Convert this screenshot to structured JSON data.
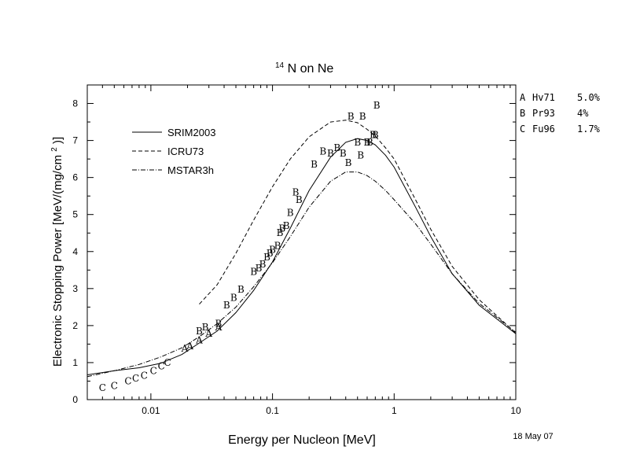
{
  "chart_data": {
    "type": "line",
    "title_superscript": "14",
    "title_main": "N on Ne",
    "xlabel": "Energy per Nucleon [MeV]",
    "ylabel_main": "Electronic Stopping Power [MeV/(mg/cm",
    "ylabel_sup": "2",
    "ylabel_end": ")]",
    "xscale": "log",
    "xlim": [
      0.003,
      10
    ],
    "ylim": [
      0,
      8.5
    ],
    "x_ticks": [
      {
        "value": 0.01,
        "label": "0.01"
      },
      {
        "value": 0.1,
        "label": "0.1"
      },
      {
        "value": 1,
        "label": "1"
      },
      {
        "value": 10,
        "label": "10"
      }
    ],
    "y_ticks": [
      {
        "value": 0,
        "label": "0"
      },
      {
        "value": 1,
        "label": "1"
      },
      {
        "value": 2,
        "label": "2"
      },
      {
        "value": 3,
        "label": "3"
      },
      {
        "value": 4,
        "label": "4"
      },
      {
        "value": 5,
        "label": "5"
      },
      {
        "value": 6,
        "label": "6"
      },
      {
        "value": 7,
        "label": "7"
      },
      {
        "value": 8,
        "label": "8"
      }
    ],
    "legend_position": "top-left",
    "series": [
      {
        "name": "SRIM2003",
        "dash": "solid",
        "x": [
          0.003,
          0.005,
          0.008,
          0.012,
          0.018,
          0.025,
          0.035,
          0.05,
          0.07,
          0.1,
          0.14,
          0.2,
          0.3,
          0.4,
          0.5,
          0.6,
          0.7,
          0.85,
          1.0,
          1.5,
          2.0,
          3.0,
          5.0,
          10.0
        ],
        "y": [
          0.67,
          0.78,
          0.86,
          0.98,
          1.22,
          1.53,
          1.85,
          2.35,
          2.95,
          3.72,
          4.63,
          5.65,
          6.55,
          6.95,
          7.05,
          7.0,
          6.88,
          6.6,
          6.28,
          5.2,
          4.4,
          3.4,
          2.55,
          1.78
        ]
      },
      {
        "name": "ICRU73",
        "dash": "dashed",
        "x": [
          0.025,
          0.035,
          0.05,
          0.07,
          0.1,
          0.14,
          0.2,
          0.3,
          0.4,
          0.5,
          0.6,
          0.7,
          0.85,
          1.0,
          1.5,
          2.0,
          3.0,
          5.0,
          10.0
        ],
        "y": [
          2.58,
          3.1,
          3.95,
          4.85,
          5.75,
          6.5,
          7.1,
          7.5,
          7.55,
          7.48,
          7.3,
          7.12,
          6.8,
          6.5,
          5.4,
          4.6,
          3.6,
          2.7,
          1.8
        ]
      },
      {
        "name": "MSTAR3h",
        "dash": "dashdot",
        "x": [
          0.003,
          0.005,
          0.008,
          0.012,
          0.018,
          0.025,
          0.035,
          0.05,
          0.07,
          0.1,
          0.14,
          0.2,
          0.3,
          0.4,
          0.5,
          0.6,
          0.7,
          0.85,
          1.0,
          1.5,
          2.0,
          3.0,
          5.0,
          10.0
        ],
        "y": [
          0.62,
          0.78,
          0.95,
          1.15,
          1.4,
          1.7,
          2.05,
          2.5,
          3.05,
          3.7,
          4.4,
          5.2,
          5.9,
          6.15,
          6.15,
          6.05,
          5.9,
          5.65,
          5.4,
          4.75,
          4.2,
          3.4,
          2.6,
          1.82
        ]
      }
    ],
    "data_groups": [
      {
        "label": "A",
        "ref": "Hv71",
        "uncertainty": "5.0%",
        "points": [
          [
            0.019,
            1.38
          ],
          [
            0.021,
            1.45
          ],
          [
            0.025,
            1.6
          ],
          [
            0.03,
            1.78
          ],
          [
            0.036,
            1.95
          ]
        ]
      },
      {
        "label": "B",
        "ref": "Pr93",
        "uncertainty": "4%",
        "points": [
          [
            0.025,
            1.85
          ],
          [
            0.028,
            1.95
          ],
          [
            0.036,
            2.05
          ],
          [
            0.042,
            2.55
          ],
          [
            0.048,
            2.75
          ],
          [
            0.055,
            2.98
          ],
          [
            0.07,
            3.45
          ],
          [
            0.077,
            3.55
          ],
          [
            0.083,
            3.65
          ],
          [
            0.09,
            3.85
          ],
          [
            0.095,
            3.95
          ],
          [
            0.1,
            4.05
          ],
          [
            0.11,
            4.15
          ],
          [
            0.115,
            4.5
          ],
          [
            0.12,
            4.62
          ],
          [
            0.13,
            4.7
          ],
          [
            0.14,
            5.05
          ],
          [
            0.155,
            5.6
          ],
          [
            0.165,
            5.4
          ],
          [
            0.22,
            6.35
          ],
          [
            0.26,
            6.7
          ],
          [
            0.3,
            6.65
          ],
          [
            0.34,
            6.8
          ],
          [
            0.38,
            6.65
          ],
          [
            0.42,
            6.4
          ],
          [
            0.44,
            7.65
          ],
          [
            0.5,
            6.95
          ],
          [
            0.53,
            6.6
          ],
          [
            0.55,
            7.65
          ],
          [
            0.6,
            6.95
          ],
          [
            0.63,
            6.95
          ],
          [
            0.67,
            7.15
          ],
          [
            0.7,
            7.15
          ],
          [
            0.72,
            7.95
          ]
        ]
      },
      {
        "label": "C",
        "ref": "Fu96",
        "uncertainty": "1.7%",
        "points": [
          [
            0.004,
            0.32
          ],
          [
            0.005,
            0.37
          ],
          [
            0.0065,
            0.5
          ],
          [
            0.0075,
            0.57
          ],
          [
            0.0088,
            0.65
          ],
          [
            0.0105,
            0.78
          ],
          [
            0.0122,
            0.9
          ],
          [
            0.0137,
            1.0
          ]
        ]
      }
    ],
    "annotation": "18 May 07"
  }
}
